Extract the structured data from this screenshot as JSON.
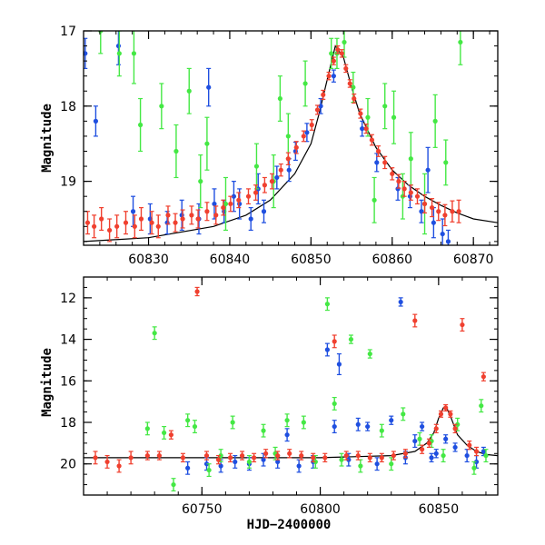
{
  "chart_data": [
    {
      "type": "scatter",
      "title": "",
      "xlabel": "",
      "ylabel": "Magnitude",
      "xlim": [
        60822,
        60873
      ],
      "ylim": [
        19.85,
        17.0
      ],
      "y_inverted": true,
      "xticks": [
        60830,
        60840,
        60850,
        60860,
        60870
      ],
      "yticks": [
        17,
        18,
        19
      ],
      "grid": false,
      "legend": "none",
      "colors": {
        "model": "#000000",
        "blue": "#1f4fe0",
        "green": "#44e844",
        "red": "#f0402f"
      },
      "model_curve": {
        "x": [
          60822,
          60830,
          60838,
          60842,
          60845,
          60848,
          60850,
          60851,
          60852,
          60853,
          60854,
          60855,
          60856,
          60858,
          60860,
          60862,
          60864,
          60866,
          60868,
          60870,
          60873
        ],
        "y": [
          19.8,
          19.75,
          19.6,
          19.45,
          19.25,
          18.9,
          18.5,
          18.1,
          17.65,
          17.2,
          17.35,
          17.75,
          18.1,
          18.55,
          18.85,
          19.05,
          19.2,
          19.32,
          19.42,
          19.5,
          19.55
        ]
      },
      "series": [
        {
          "color_key": "blue",
          "x": [
            60822.2,
            60823.5,
            60826.3,
            60828.1,
            60830.2,
            60832.3,
            60834.1,
            60836.2,
            60837.4,
            60838.1,
            60839.3,
            60840.5,
            60841.2,
            60842.6,
            60843.5,
            60844.2,
            60845.8,
            60847.3,
            60848.1,
            60849.5,
            60851.2,
            60852.8,
            60856.3,
            60858.1,
            60860.7,
            60862.2,
            60863.6,
            60864.4,
            60865.1,
            60866.2,
            60866.9
          ],
          "y": [
            17.3,
            18.2,
            17.2,
            19.4,
            19.5,
            19.55,
            19.45,
            19.5,
            17.75,
            19.3,
            19.4,
            19.2,
            19.3,
            19.5,
            19.1,
            19.4,
            18.95,
            18.85,
            18.6,
            18.35,
            18.0,
            17.6,
            18.3,
            18.75,
            19.1,
            19.2,
            19.4,
            18.85,
            19.55,
            19.7,
            19.8
          ],
          "err": [
            0.2,
            0.2,
            0.25,
            0.2,
            0.2,
            0.15,
            0.2,
            0.2,
            0.25,
            0.2,
            0.15,
            0.2,
            0.2,
            0.15,
            0.2,
            0.15,
            0.15,
            0.15,
            0.12,
            0.12,
            0.1,
            0.08,
            0.1,
            0.12,
            0.15,
            0.15,
            0.15,
            0.3,
            0.2,
            0.2,
            0.15
          ]
        },
        {
          "color_key": "green",
          "x": [
            60824.1,
            60826.4,
            60828.2,
            60829.0,
            60831.6,
            60833.4,
            60835.0,
            60836.4,
            60837.2,
            60839.5,
            60843.3,
            60845.4,
            60846.2,
            60847.2,
            60849.3,
            60852.5,
            60853.2,
            60854.1,
            60855.2,
            60857.0,
            60857.8,
            60859.1,
            60860.2,
            60861.3,
            60862.3,
            60864.0,
            60865.3,
            60866.6,
            60868.4
          ],
          "y": [
            17.0,
            17.3,
            17.3,
            18.25,
            18.0,
            18.6,
            17.8,
            19.0,
            18.5,
            19.3,
            18.8,
            19.0,
            17.9,
            18.4,
            17.7,
            17.3,
            17.3,
            17.15,
            17.75,
            18.15,
            19.25,
            18.0,
            18.15,
            19.2,
            18.7,
            19.3,
            18.2,
            18.75,
            17.15
          ],
          "err": [
            0.3,
            0.3,
            0.4,
            0.35,
            0.3,
            0.35,
            0.3,
            0.35,
            0.35,
            0.35,
            0.3,
            0.35,
            0.3,
            0.3,
            0.3,
            0.2,
            0.2,
            0.2,
            0.2,
            0.25,
            0.3,
            0.3,
            0.35,
            0.3,
            0.35,
            0.4,
            0.35,
            0.3,
            0.3
          ]
        },
        {
          "color_key": "red",
          "x": [
            60822.5,
            60823.3,
            60824.2,
            60825.2,
            60826.1,
            60827.2,
            60828.3,
            60829.1,
            60830.4,
            60831.2,
            60832.4,
            60833.3,
            60834.2,
            60835.3,
            60836.1,
            60837.2,
            60838.3,
            60839.2,
            60840.1,
            60841.1,
            60842.3,
            60843.2,
            60844.3,
            60845.2,
            60846.3,
            60847.2,
            60848.2,
            60849.1,
            60850.1,
            60850.8,
            60851.5,
            60852.2,
            60852.8,
            60853.3,
            60853.8,
            60854.3,
            60854.8,
            60855.3,
            60856.1,
            60856.8,
            60857.5,
            60858.3,
            60859.1,
            60860.0,
            60860.8,
            60861.5,
            60862.3,
            60863.1,
            60864.0,
            60864.9,
            60865.7,
            60866.5,
            60867.4,
            60868.2
          ],
          "y": [
            19.55,
            19.6,
            19.5,
            19.65,
            19.6,
            19.55,
            19.6,
            19.5,
            19.55,
            19.6,
            19.45,
            19.55,
            19.5,
            19.45,
            19.5,
            19.4,
            19.45,
            19.35,
            19.3,
            19.25,
            19.2,
            19.15,
            19.05,
            19.0,
            18.85,
            18.7,
            18.55,
            18.4,
            18.25,
            18.05,
            17.85,
            17.6,
            17.4,
            17.25,
            17.3,
            17.5,
            17.7,
            17.9,
            18.1,
            18.3,
            18.45,
            18.6,
            18.75,
            18.9,
            19.0,
            19.1,
            19.15,
            19.2,
            19.3,
            19.35,
            19.4,
            19.45,
            19.4,
            19.4
          ],
          "err": [
            0.15,
            0.15,
            0.15,
            0.15,
            0.15,
            0.15,
            0.15,
            0.15,
            0.15,
            0.15,
            0.12,
            0.12,
            0.12,
            0.12,
            0.12,
            0.12,
            0.12,
            0.1,
            0.1,
            0.1,
            0.1,
            0.1,
            0.1,
            0.1,
            0.08,
            0.08,
            0.08,
            0.07,
            0.07,
            0.06,
            0.06,
            0.05,
            0.05,
            0.05,
            0.05,
            0.05,
            0.05,
            0.06,
            0.06,
            0.06,
            0.07,
            0.07,
            0.08,
            0.08,
            0.09,
            0.1,
            0.1,
            0.1,
            0.12,
            0.12,
            0.12,
            0.14,
            0.14,
            0.15
          ]
        }
      ]
    },
    {
      "type": "scatter",
      "title": "",
      "xlabel": "HJD−2400000",
      "ylabel": "Magnitude",
      "xlim": [
        60700,
        60875
      ],
      "ylim": [
        21.5,
        11.0
      ],
      "y_inverted": true,
      "xticks": [
        60750,
        60800,
        60850
      ],
      "yticks": [
        12,
        14,
        16,
        18,
        20
      ],
      "grid": false,
      "legend": "none",
      "colors": {
        "model": "#000000",
        "blue": "#1f4fe0",
        "green": "#44e844",
        "red": "#f0402f"
      },
      "model_curve": {
        "x": [
          60700,
          60800,
          60830,
          60840,
          60845,
          60848,
          60850,
          60852,
          60853,
          60855,
          60858,
          60862,
          60866,
          60870,
          60875
        ],
        "y": [
          19.7,
          19.7,
          19.6,
          19.4,
          19.0,
          18.5,
          17.8,
          17.3,
          17.2,
          17.7,
          18.6,
          19.1,
          19.4,
          19.55,
          19.6
        ]
      },
      "series": [
        {
          "color_key": "blue",
          "x": [
            60744.0,
            60752.0,
            60758.0,
            60764.0,
            60770.0,
            60776.0,
            60782.0,
            60786.0,
            60791.0,
            60797.0,
            60803.0,
            60806.0,
            60808.0,
            60812.0,
            60816.0,
            60820.0,
            60824.0,
            60830.0,
            60834.0,
            60836.0,
            60840.0,
            60843.0,
            60847.0,
            60849.0,
            60853.0,
            60857.0,
            60862.0,
            60866.0,
            60869.0
          ],
          "y": [
            20.2,
            20.0,
            20.1,
            19.9,
            20.0,
            19.8,
            19.9,
            18.6,
            20.1,
            19.9,
            14.5,
            18.2,
            15.2,
            19.8,
            18.1,
            18.2,
            20.0,
            17.9,
            12.2,
            19.7,
            18.9,
            18.2,
            19.7,
            19.5,
            18.8,
            19.2,
            19.6,
            19.9,
            19.4
          ],
          "err": [
            0.3,
            0.3,
            0.3,
            0.3,
            0.3,
            0.3,
            0.3,
            0.3,
            0.3,
            0.3,
            0.3,
            0.3,
            0.5,
            0.3,
            0.3,
            0.2,
            0.3,
            0.2,
            0.2,
            0.3,
            0.3,
            0.2,
            0.2,
            0.2,
            0.2,
            0.2,
            0.3,
            0.3,
            0.2
          ]
        },
        {
          "color_key": "green",
          "x": [
            60727.0,
            60730.0,
            60734.0,
            60738.0,
            60744.0,
            60747.0,
            60753.0,
            60758.0,
            60763.0,
            60770.0,
            60776.0,
            60781.0,
            60786.0,
            60793.0,
            60798.0,
            60803.0,
            60806.0,
            60809.0,
            60813.0,
            60817.0,
            60821.0,
            60826.0,
            60830.0,
            60835.0,
            60842.0,
            60847.0,
            60852.0,
            60858.0,
            60865.0,
            60868.0,
            60870.0
          ],
          "y": [
            18.3,
            13.7,
            18.5,
            21.0,
            17.9,
            18.2,
            20.3,
            19.6,
            18.0,
            19.9,
            18.4,
            19.5,
            17.9,
            18.0,
            19.9,
            12.3,
            17.1,
            19.8,
            14.0,
            20.1,
            14.7,
            18.4,
            20.0,
            17.6,
            18.8,
            18.9,
            19.6,
            18.1,
            20.2,
            17.2,
            19.6
          ],
          "err": [
            0.3,
            0.3,
            0.3,
            0.3,
            0.3,
            0.3,
            0.3,
            0.3,
            0.3,
            0.3,
            0.3,
            0.3,
            0.3,
            0.3,
            0.3,
            0.3,
            0.3,
            0.3,
            0.2,
            0.3,
            0.2,
            0.3,
            0.3,
            0.3,
            0.3,
            0.3,
            0.3,
            0.3,
            0.3,
            0.3,
            0.3
          ]
        },
        {
          "color_key": "red",
          "x": [
            60705.0,
            60710.0,
            60715.0,
            60720.0,
            60727.0,
            60732.0,
            60737.0,
            60742.0,
            60748.0,
            60752.0,
            60757.0,
            60762.0,
            60767.0,
            60772.0,
            60777.0,
            60782.0,
            60787.0,
            60792.0,
            60797.0,
            60802.0,
            60806.0,
            60811.0,
            60816.0,
            60821.0,
            60826.0,
            60831.0,
            60836.0,
            60840.0,
            60843.0,
            60846.0,
            60849.0,
            60851.0,
            60853.0,
            60855.0,
            60857.0,
            60860.0,
            60863.0,
            60866.0,
            60869.0
          ],
          "y": [
            19.7,
            19.9,
            20.1,
            19.7,
            19.6,
            19.6,
            18.6,
            19.7,
            11.7,
            19.6,
            19.8,
            19.7,
            19.6,
            19.7,
            19.5,
            19.6,
            19.5,
            19.6,
            19.7,
            19.7,
            14.1,
            19.6,
            19.6,
            19.7,
            19.7,
            19.6,
            19.5,
            13.1,
            19.3,
            19.0,
            18.3,
            17.6,
            17.3,
            17.6,
            18.3,
            13.3,
            19.1,
            19.4,
            15.8
          ],
          "err": [
            0.3,
            0.3,
            0.3,
            0.3,
            0.2,
            0.2,
            0.2,
            0.2,
            0.2,
            0.2,
            0.2,
            0.2,
            0.2,
            0.2,
            0.2,
            0.2,
            0.2,
            0.2,
            0.2,
            0.2,
            0.3,
            0.2,
            0.2,
            0.2,
            0.2,
            0.2,
            0.2,
            0.3,
            0.2,
            0.2,
            0.2,
            0.15,
            0.15,
            0.15,
            0.2,
            0.3,
            0.2,
            0.2,
            0.2
          ]
        }
      ]
    }
  ]
}
